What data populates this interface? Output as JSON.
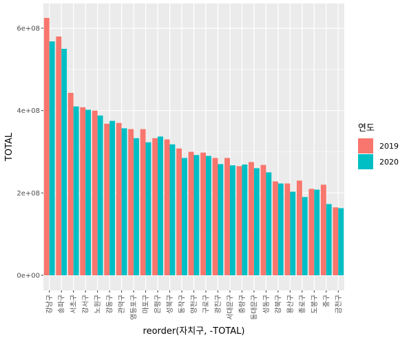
{
  "chart_data": {
    "type": "bar",
    "title": "",
    "xlabel": "reorder(자치구, -TOTAL)",
    "ylabel": "TOTAL",
    "ylim": [
      0,
      630000000
    ],
    "yticks": [
      0,
      200000000,
      400000000,
      600000000
    ],
    "ytick_labels": [
      "0e+00",
      "2e+08",
      "4e+08",
      "6e+08"
    ],
    "grid": true,
    "legend_title": "연도",
    "legend_position": "right",
    "categories": [
      "강남구",
      "송파구",
      "서초구",
      "강서구",
      "노원구",
      "강동구",
      "관악구",
      "영등포구",
      "마포구",
      "은평구",
      "성북구",
      "동작구",
      "양천구",
      "구로구",
      "광진구",
      "서대문구",
      "중랑구",
      "동대문구",
      "성동구",
      "강북구",
      "용산구",
      "종로구",
      "도봉구",
      "중구",
      "금천구"
    ],
    "series": [
      {
        "name": "2019",
        "color": "#F8766D",
        "values": [
          625000000,
          580000000,
          443000000,
          408000000,
          400000000,
          368000000,
          370000000,
          355000000,
          355000000,
          333000000,
          330000000,
          308000000,
          300000000,
          298000000,
          285000000,
          285000000,
          265000000,
          275000000,
          268000000,
          228000000,
          223000000,
          230000000,
          210000000,
          220000000,
          165000000
        ]
      },
      {
        "name": "2020",
        "color": "#00BFC4",
        "values": [
          568000000,
          550000000,
          410000000,
          402000000,
          388000000,
          375000000,
          357000000,
          333000000,
          323000000,
          337000000,
          318000000,
          285000000,
          292000000,
          290000000,
          270000000,
          267000000,
          269000000,
          260000000,
          250000000,
          223000000,
          203000000,
          190000000,
          208000000,
          173000000,
          163000000
        ]
      }
    ]
  }
}
